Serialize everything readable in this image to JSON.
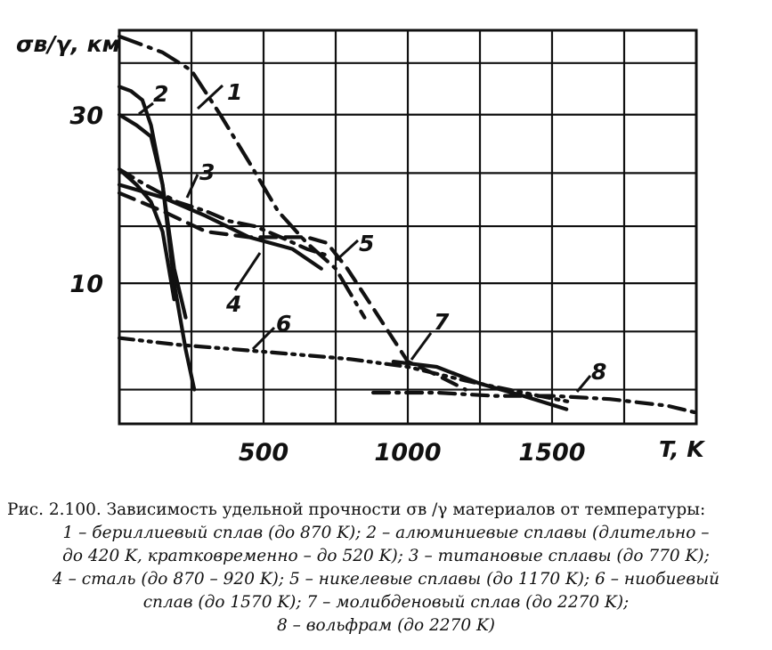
{
  "chart_data": {
    "type": "line",
    "ylabel": "σв/γ, км",
    "xlabel": "T, K",
    "x_ticks": [
      500,
      1000,
      1500
    ],
    "y_ticks": [
      10,
      30
    ],
    "y_scale": "log",
    "xlim": [
      0,
      2000
    ],
    "ylim": [
      4,
      52
    ],
    "grid": true,
    "series": [
      {
        "name": "1",
        "style": "long-dash-dot",
        "x": [
          0,
          150,
          250,
          350,
          450,
          550,
          650,
          750,
          850
        ],
        "y": [
          50,
          45,
          40,
          30,
          22,
          16,
          13,
          11,
          8
        ]
      },
      {
        "name": "2",
        "style": "solid",
        "x": [
          0,
          40,
          80,
          110,
          150,
          190,
          230,
          260
        ],
        "y": [
          36,
          35,
          33,
          28,
          19,
          10,
          6.5,
          5
        ]
      },
      {
        "name": "2",
        "style": "solid",
        "x": [
          0,
          60,
          110,
          150,
          190,
          230
        ],
        "y": [
          30,
          28,
          26,
          19,
          11,
          8
        ]
      },
      {
        "name": "3",
        "style": "dash-dot",
        "x": [
          0,
          90,
          200,
          300,
          380,
          470,
          560,
          650,
          720
        ],
        "y": [
          21,
          19,
          17,
          16,
          15,
          14.5,
          13.5,
          12.5,
          12
        ]
      },
      {
        "name": "4",
        "style": "solid",
        "x": [
          0,
          60,
          110,
          150,
          190
        ],
        "y": [
          21,
          19,
          17,
          14,
          9
        ]
      },
      {
        "name": "4",
        "style": "solid",
        "x": [
          0,
          150,
          300,
          450,
          600,
          700
        ],
        "y": [
          19,
          17.5,
          15.5,
          13.5,
          12.5,
          11
        ]
      },
      {
        "name": "5",
        "style": "dashed",
        "x": [
          0,
          150,
          300,
          450,
          550,
          650,
          720,
          790,
          880,
          1000,
          1100,
          1200
        ],
        "y": [
          18,
          16,
          14,
          13.5,
          13.5,
          13.5,
          13,
          11,
          8.5,
          6,
          5.5,
          5
        ]
      },
      {
        "name": "6",
        "style": "dash-dot-dot",
        "x": [
          0,
          200,
          400,
          600,
          800,
          1000,
          1200,
          1400,
          1570
        ],
        "y": [
          7,
          6.7,
          6.5,
          6.3,
          6.1,
          5.8,
          5.3,
          4.9,
          4.6
        ]
      },
      {
        "name": "7",
        "style": "solid",
        "x": [
          950,
          1100,
          1250,
          1400,
          1550
        ],
        "y": [
          6,
          5.8,
          5.2,
          4.8,
          4.4
        ]
      },
      {
        "name": "8",
        "style": "dash-dot",
        "x": [
          880,
          1100,
          1300,
          1500,
          1700,
          1900,
          2000
        ],
        "y": [
          4.9,
          4.9,
          4.8,
          4.8,
          4.7,
          4.5,
          4.3
        ]
      }
    ]
  },
  "caption": {
    "line1": "Рис. 2.100. Зависимость удельной прочности σв /γ материалов от температуры:",
    "line2": "1 – бериллиевый сплав (до 870 K); 2 – алюминиевые сплавы (длительно –",
    "line3": "до 420 K, кратковременно – до 520 K); 3 – титановые сплавы (до 770 K);",
    "line4": "4 – сталь (до 870 – 920 K); 5 – никелевые сплавы (до 1170 K); 6 – ниобиевый",
    "line5": "сплав (до 1570 K); 7 – молибденовый сплав (до 2270 K);",
    "line6": "8 – вольфрам (до 2270 K)"
  }
}
